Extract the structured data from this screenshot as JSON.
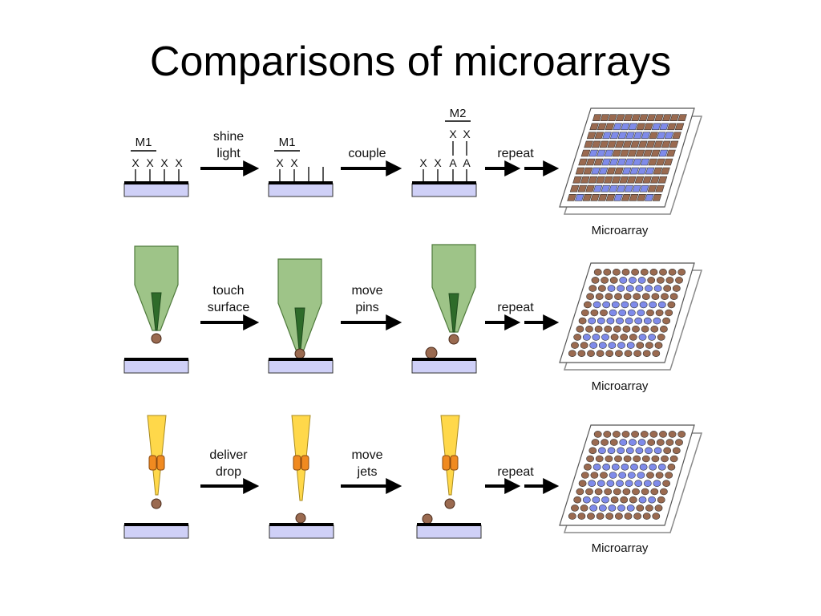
{
  "title": "Comparisons of microarrays",
  "colors": {
    "substrate": "#cfd0f7",
    "brown_spot": "#9a6a50",
    "blue_spot": "#7f8bea",
    "pin_green": "#9ec488",
    "pin_tip": "#2e6b2a",
    "jet_yellow": "#ffd84a",
    "jet_orange": "#f08a20"
  },
  "rows": [
    {
      "arrows": [
        [
          "shine",
          "light"
        ],
        [
          "couple"
        ],
        [
          "repeat"
        ]
      ],
      "mask1": "M1",
      "mask2": "M2",
      "step1_marks": [
        "X",
        "X",
        "X",
        "X"
      ],
      "step2_marks": [
        "X",
        "X"
      ],
      "step3_marks": [
        "X",
        "X",
        "A",
        "A"
      ],
      "step3_top_marks": [
        "X",
        "X"
      ],
      "caption": "Microarray"
    },
    {
      "arrows": [
        [
          "touch",
          "surface"
        ],
        [
          "move",
          "pins"
        ],
        [
          "repeat"
        ]
      ],
      "caption": "Microarray"
    },
    {
      "arrows": [
        [
          "deliver",
          "drop"
        ],
        [
          "move",
          "jets"
        ],
        [
          "repeat"
        ]
      ],
      "caption": "Microarray"
    }
  ],
  "grid_patterns": {
    "row1": [
      "BBBBBBBBBBBB",
      "BBBbbbBBbbBB",
      "BBbbbbbbBbbB",
      "BBBBBBBBBBBB",
      "BbbbBBBBBBbB",
      "BBBbbbbbbBBB",
      "BBbbBBbbbbBB",
      "BBBBBBBBBBBB",
      "BBBbbbbbbbBB",
      "BbBBBBbBBBbB"
    ],
    "row2": [
      "BBBBBBBBBB",
      "BBBbbbBBBB",
      "BBbbbbbbBB",
      "BBBBBBBBBB",
      "BbbbbbbbbB",
      "BBBbbbbBBB",
      "BbbbbbbbbB",
      "BBBBBBBBBB",
      "BbbbBBBbbB",
      "BBbbbbbBBB",
      "BBBBBBBBBB"
    ],
    "row3": [
      "BBBBBBBBBB",
      "BBBbbbBBBB",
      "BbbbbbbbBB",
      "BBBBBBBBBB",
      "BbbbbbbbbB",
      "BBBbbbbBBB",
      "BbbbbbbbbB",
      "BBBBBBBBBB",
      "BbbbBBBbbB",
      "BBbbbbbBBB",
      "BBBBBBBBBB"
    ]
  }
}
